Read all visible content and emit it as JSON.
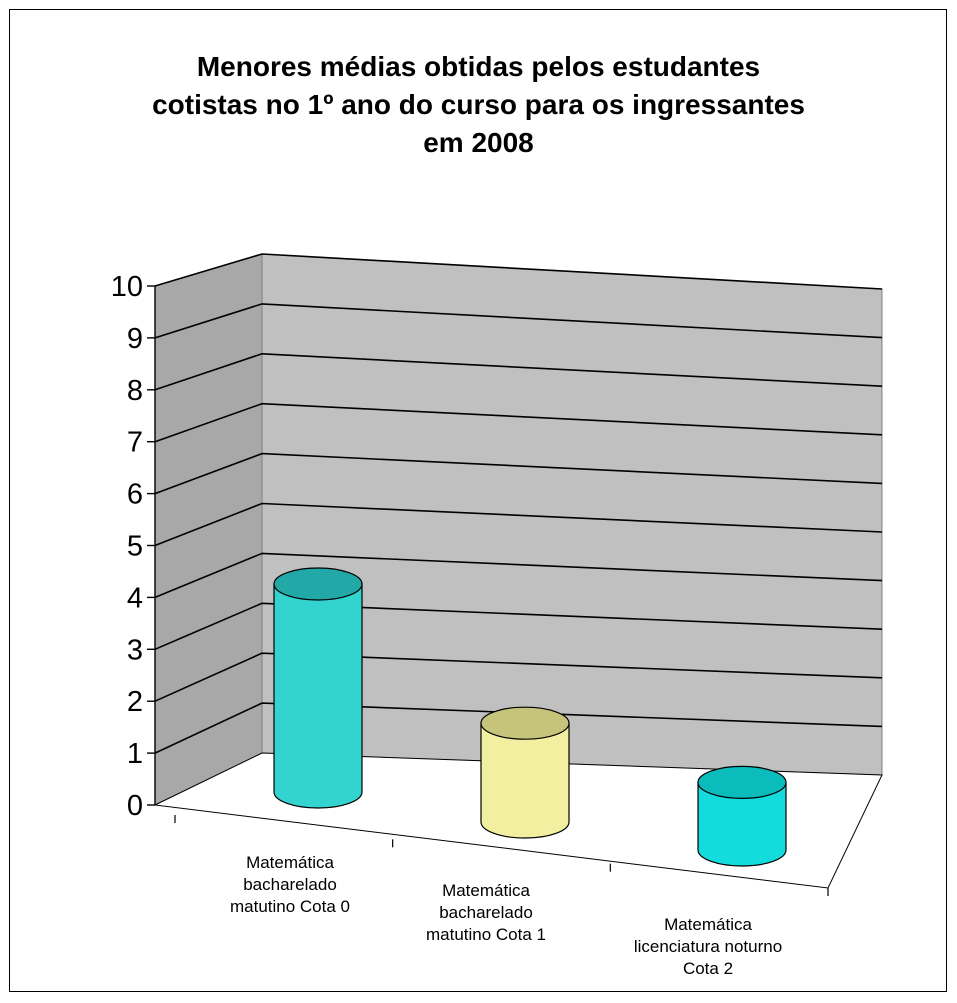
{
  "chart_data": {
    "type": "bar",
    "title_lines": [
      "Menores médias obtidas pelos estudantes",
      "cotistas no 1º ano do curso para os ingressantes",
      "em 2008"
    ],
    "categories": [
      [
        "Matemática",
        "bacharelado",
        "matutino  Cota 0"
      ],
      [
        "Matemática",
        "bacharelado",
        "matutino  Cota 1"
      ],
      [
        "Matemática",
        "licenciatura noturno",
        "Cota 2"
      ]
    ],
    "values": [
      4.0,
      1.9,
      1.3
    ],
    "ylim": [
      0,
      10
    ],
    "yticks": [
      "0",
      "1",
      "2",
      "3",
      "4",
      "5",
      "6",
      "7",
      "8",
      "9",
      "10"
    ],
    "grid": true,
    "colors": {
      "bars": [
        "#33d3d0",
        "#f2f0a0",
        "#14dcdc"
      ],
      "bar_tops": [
        "#22a8a6",
        "#c6c47a",
        "#0bbcbc"
      ],
      "wall": "#c0c0c0",
      "side_wall": "#a8a8a8",
      "floor": "#ffffff"
    }
  }
}
